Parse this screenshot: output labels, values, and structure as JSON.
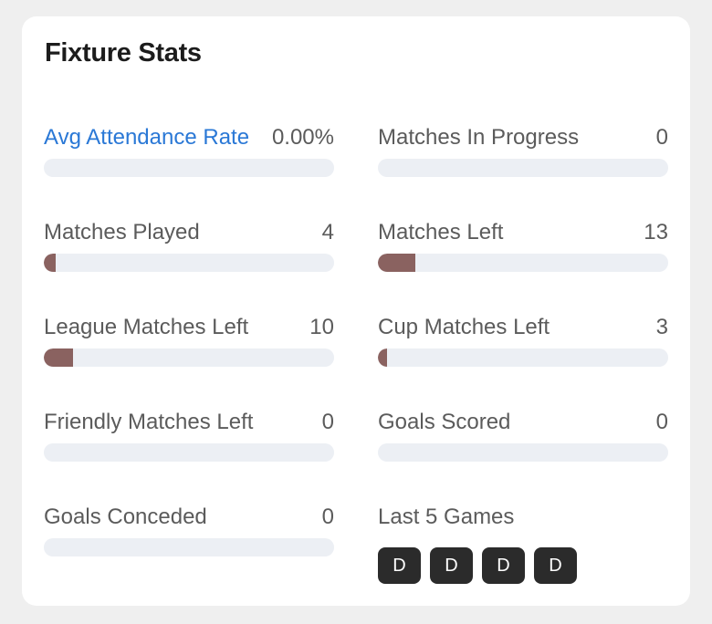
{
  "title": "Fixture Stats",
  "stats": [
    {
      "label": "Avg Attendance Rate",
      "value": "0.00%",
      "fill": 0,
      "link": true
    },
    {
      "label": "Matches In Progress",
      "value": "0",
      "fill": 0
    },
    {
      "label": "Matches Played",
      "value": "4",
      "fill": 0.04
    },
    {
      "label": "Matches Left",
      "value": "13",
      "fill": 0.13
    },
    {
      "label": "League Matches Left",
      "value": "10",
      "fill": 0.1
    },
    {
      "label": "Cup Matches Left",
      "value": "3",
      "fill": 0.03
    },
    {
      "label": "Friendly Matches Left",
      "value": "0",
      "fill": 0
    },
    {
      "label": "Goals Scored",
      "value": "0",
      "fill": 0
    },
    {
      "label": "Goals Conceded",
      "value": "0",
      "fill": 0
    }
  ],
  "last_games": {
    "label": "Last 5 Games",
    "results": [
      "D",
      "D",
      "D",
      "D"
    ]
  },
  "colors": {
    "bar_track": "#eceff4",
    "bar_fill": "#8a6260",
    "link": "#2a78d6",
    "result_badge": "#2b2b2b"
  }
}
